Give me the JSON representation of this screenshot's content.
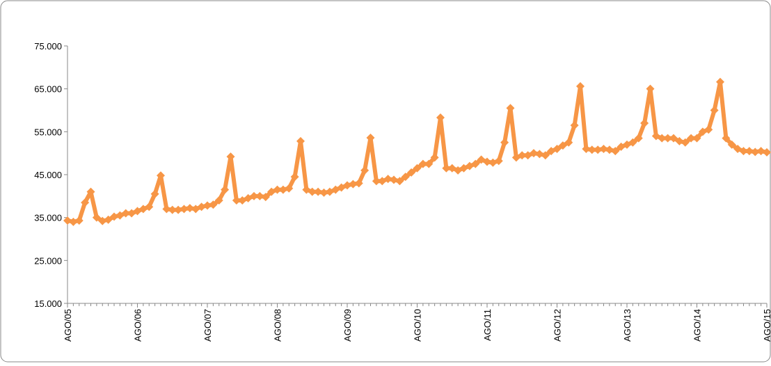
{
  "chart_data": {
    "type": "line",
    "categories": [
      "AGO/05",
      null,
      null,
      null,
      null,
      null,
      null,
      null,
      null,
      null,
      null,
      null,
      "AGO/06",
      null,
      null,
      null,
      null,
      null,
      null,
      null,
      null,
      null,
      null,
      null,
      "AGO/07",
      null,
      null,
      null,
      null,
      null,
      null,
      null,
      null,
      null,
      null,
      null,
      "AGO/08",
      null,
      null,
      null,
      null,
      null,
      null,
      null,
      null,
      null,
      null,
      null,
      "AGO/09",
      null,
      null,
      null,
      null,
      null,
      null,
      null,
      null,
      null,
      null,
      null,
      "AGO/10",
      null,
      null,
      null,
      null,
      null,
      null,
      null,
      null,
      null,
      null,
      null,
      "AGO/11",
      null,
      null,
      null,
      null,
      null,
      null,
      null,
      null,
      null,
      null,
      null,
      "AGO/12",
      null,
      null,
      null,
      null,
      null,
      null,
      null,
      null,
      null,
      null,
      null,
      "AGO/13",
      null,
      null,
      null,
      null,
      null,
      null,
      null,
      null,
      null,
      null,
      null,
      "AGO/14",
      null,
      null,
      null,
      null,
      null,
      null,
      null,
      null,
      null,
      null,
      null,
      "AGO/15"
    ],
    "values": [
      34300,
      34000,
      34300,
      38500,
      41000,
      35000,
      34200,
      34500,
      35200,
      35500,
      36000,
      36000,
      36500,
      37000,
      37500,
      40500,
      44800,
      37000,
      36800,
      36800,
      37000,
      37200,
      37000,
      37500,
      37800,
      38000,
      39000,
      41500,
      49200,
      39000,
      39000,
      39500,
      40000,
      40000,
      39800,
      41000,
      41500,
      41500,
      41800,
      44500,
      52800,
      41500,
      41000,
      41000,
      40800,
      41000,
      41500,
      42000,
      42500,
      42800,
      43000,
      46000,
      53600,
      43500,
      43500,
      44000,
      43800,
      43500,
      44500,
      45500,
      46500,
      47500,
      47500,
      49000,
      58300,
      46500,
      46500,
      46000,
      46500,
      47000,
      47500,
      48500,
      48000,
      47800,
      48200,
      52500,
      60500,
      49000,
      49500,
      49500,
      50000,
      49800,
      49500,
      50500,
      51000,
      51800,
      52500,
      56500,
      65600,
      51000,
      50800,
      50800,
      51000,
      50800,
      50500,
      51500,
      52000,
      52500,
      53500,
      57000,
      65000,
      54000,
      53500,
      53500,
      53500,
      52800,
      52500,
      53500,
      53500,
      55000,
      55500,
      60000,
      66600,
      53500,
      52000,
      51000,
      50500,
      50500,
      50300,
      50500,
      50200
    ],
    "color": "#f79646",
    "ylim": [
      15000,
      75000
    ],
    "yticks": [
      {
        "value": 15000,
        "label": "15.000"
      },
      {
        "value": 25000,
        "label": "25.000"
      },
      {
        "value": 35000,
        "label": "35.000"
      },
      {
        "value": 45000,
        "label": "45.000"
      },
      {
        "value": 55000,
        "label": "55.000"
      },
      {
        "value": 65000,
        "label": "65.000"
      },
      {
        "value": 75000,
        "label": "75.000"
      }
    ],
    "grid": false
  }
}
